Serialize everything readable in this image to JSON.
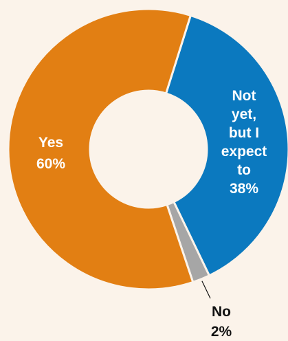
{
  "chart_data": {
    "type": "pie",
    "donut": true,
    "slices": [
      {
        "label_lines": [
          "Not",
          "yet,",
          "but I",
          "expect",
          "to",
          "38%"
        ],
        "value": 38,
        "color": "#0b79bf",
        "label_position": "inside"
      },
      {
        "label_lines": [
          "No",
          "2%"
        ],
        "value": 2,
        "color": "#a6a6a6",
        "label_position": "outside"
      },
      {
        "label_lines": [
          "Yes",
          "60%"
        ],
        "value": 60,
        "color": "#e27f13",
        "label_position": "inside"
      }
    ],
    "background": "#fbf3ea",
    "legend": "none"
  }
}
